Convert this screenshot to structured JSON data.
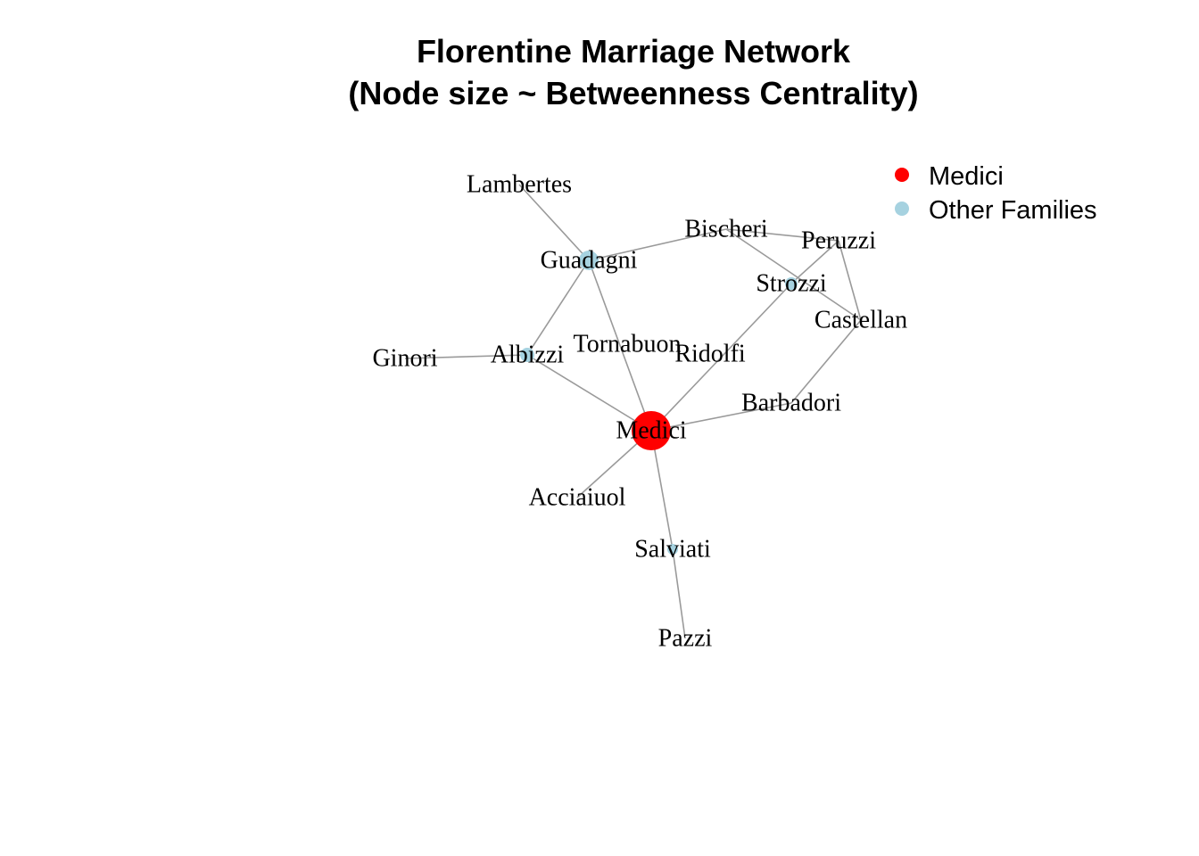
{
  "title_lines": [
    "Florentine Marriage Network",
    "(Node size ~ Betweenness Centrality)"
  ],
  "legend": [
    {
      "label": "Medici",
      "color": "#ff0000"
    },
    {
      "label": "Other Families",
      "color": "#a6d2e0"
    }
  ],
  "network": {
    "nodes": [
      {
        "id": "Lambertes",
        "label": "Lambertes"
      },
      {
        "id": "Guadagni",
        "label": "Guadagni"
      },
      {
        "id": "Bischeri",
        "label": "Bischeri"
      },
      {
        "id": "Peruzzi",
        "label": "Peruzzi"
      },
      {
        "id": "Strozzi",
        "label": "Strozzi"
      },
      {
        "id": "Castellan",
        "label": "Castellan"
      },
      {
        "id": "Ginori",
        "label": "Ginori"
      },
      {
        "id": "Albizzi",
        "label": "Albizzi"
      },
      {
        "id": "Tornabuon",
        "label": "Tornabuon"
      },
      {
        "id": "Ridolfi",
        "label": "Ridolfi"
      },
      {
        "id": "Barbadori",
        "label": "Barbadori"
      },
      {
        "id": "Medici",
        "label": "Medici"
      },
      {
        "id": "Acciaiuol",
        "label": "Acciaiuol"
      },
      {
        "id": "Salviati",
        "label": "Salviati"
      },
      {
        "id": "Pazzi",
        "label": "Pazzi"
      }
    ],
    "edges": [
      [
        "Lambertes",
        "Guadagni"
      ],
      [
        "Guadagni",
        "Bischeri"
      ],
      [
        "Guadagni",
        "Albizzi"
      ],
      [
        "Guadagni",
        "Medici"
      ],
      [
        "Bischeri",
        "Peruzzi"
      ],
      [
        "Bischeri",
        "Castellan"
      ],
      [
        "Peruzzi",
        "Strozzi"
      ],
      [
        "Peruzzi",
        "Castellan"
      ],
      [
        "Strozzi",
        "Medici"
      ],
      [
        "Castellan",
        "Barbadori"
      ],
      [
        "Ginori",
        "Albizzi"
      ],
      [
        "Albizzi",
        "Medici"
      ],
      [
        "Barbadori",
        "Medici"
      ],
      [
        "Medici",
        "Acciaiuol"
      ],
      [
        "Medici",
        "Salviati"
      ],
      [
        "Salviati",
        "Pazzi"
      ]
    ]
  }
}
